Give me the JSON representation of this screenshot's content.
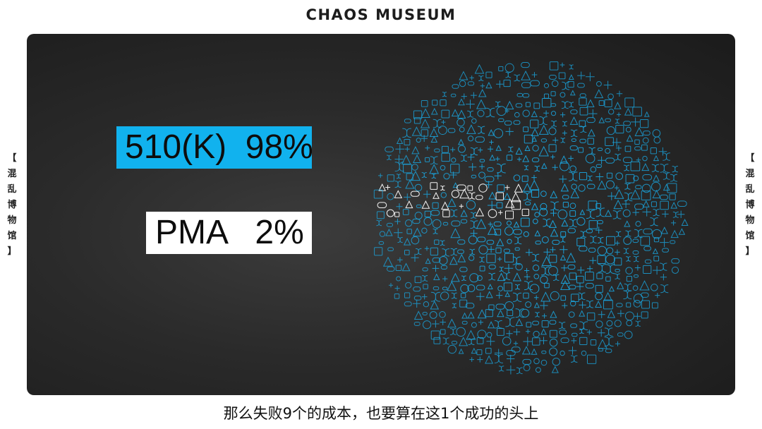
{
  "header": {
    "brand": "CHAOS MUSEUM"
  },
  "side_label": {
    "chars": [
      "【",
      "混",
      "乱",
      "博",
      "物",
      "馆",
      "】"
    ]
  },
  "slide": {
    "stat_510k": "510(K)  98%",
    "stat_pma": "PMA   2%",
    "accent_color": "#11b2ee",
    "icon_cluster": {
      "icon_color": "#1aa6e0",
      "highlight_color": "#ffffff"
    }
  },
  "subtitle": {
    "text": "那么失败9个的成本，也要算在这1个成功的头上"
  }
}
